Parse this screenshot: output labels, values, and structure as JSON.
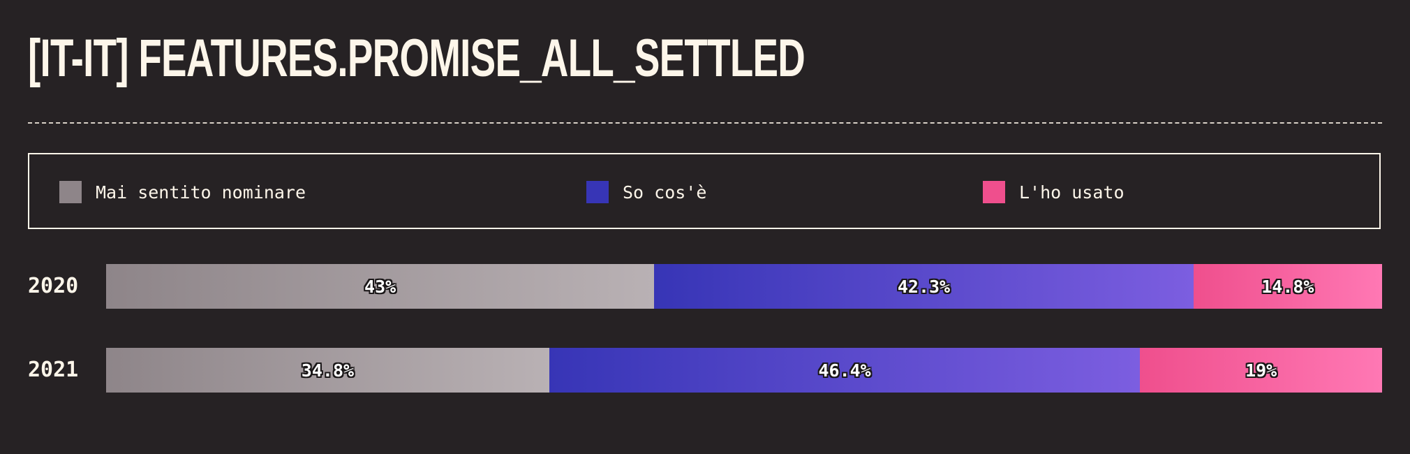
{
  "title": "[IT-IT] FEATURES.PROMISE_ALL_SETTLED",
  "legend": [
    {
      "label": "Mai sentito nominare",
      "color": "#8e8589"
    },
    {
      "label": "So cos'è",
      "color": "#3735b6"
    },
    {
      "label": "L'ho usato",
      "color": "#ef4f8d"
    }
  ],
  "chart_data": {
    "type": "bar",
    "orientation": "horizontal",
    "stacked": true,
    "normalized": true,
    "categories": [
      "2020",
      "2021"
    ],
    "series": [
      {
        "name": "Mai sentito nominare",
        "values": [
          43,
          34.8
        ],
        "labels": [
          "43%",
          "34.8%"
        ]
      },
      {
        "name": "So cos'è",
        "values": [
          42.3,
          46.4
        ],
        "labels": [
          "42.3%",
          "46.4%"
        ]
      },
      {
        "name": "L'ho usato",
        "values": [
          14.8,
          19
        ],
        "labels": [
          "14.8%",
          "19%"
        ]
      }
    ],
    "xlim": [
      0,
      100
    ],
    "legend_position": "top",
    "grid": false
  }
}
